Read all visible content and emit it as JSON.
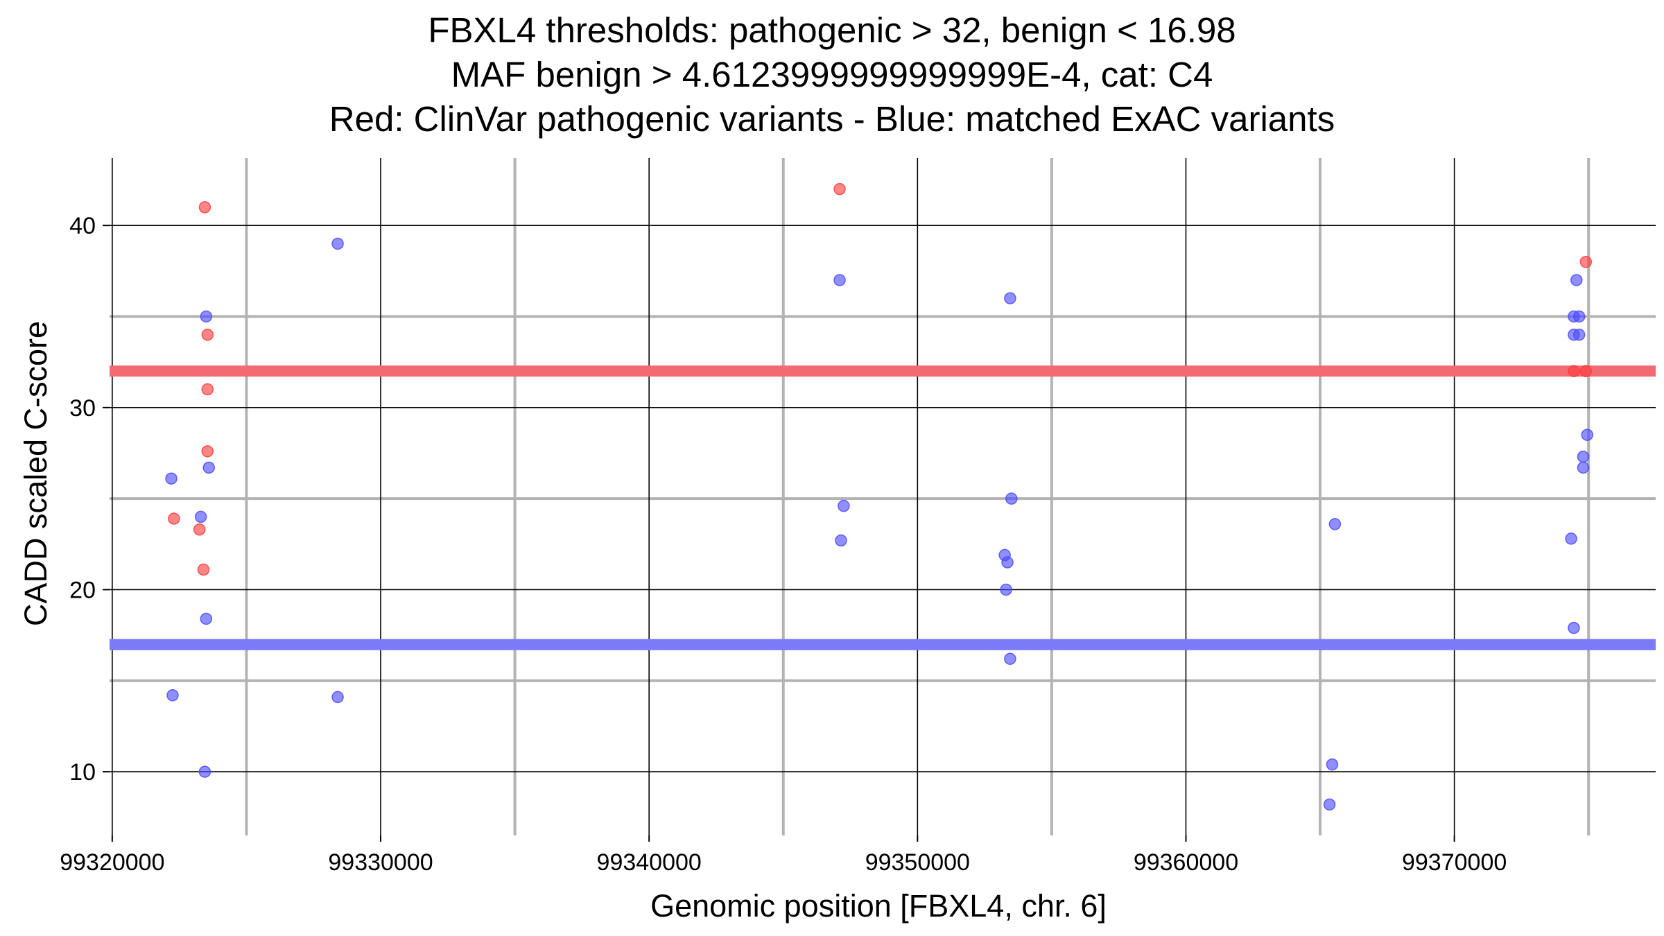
{
  "chart_data": {
    "type": "scatter",
    "title_lines": [
      "FBXL4 thresholds: pathogenic > 32, benign < 16.98",
      "MAF benign > 4.6123999999999999E-4, cat: C4",
      "Red: ClinVar pathogenic variants - Blue: matched ExAC variants"
    ],
    "xlabel": "Genomic position [FBXL4, chr. 6]",
    "ylabel": "CADD scaled C-score",
    "xlim": [
      99319900,
      99377500
    ],
    "ylim": [
      6.5,
      43.7
    ],
    "x_ticks": [
      99320000,
      99330000,
      99340000,
      99350000,
      99360000,
      99370000
    ],
    "x_tick_labels": [
      "99320000",
      "99330000",
      "99340000",
      "99350000",
      "99360000",
      "99370000"
    ],
    "x_minor_gridlines": [
      99325000,
      99335000,
      99345000,
      99355000,
      99365000,
      99375000
    ],
    "y_ticks": [
      10,
      20,
      30,
      40
    ],
    "y_tick_labels": [
      "10",
      "20",
      "30",
      "40"
    ],
    "y_minor_gridlines": [
      15,
      25,
      35
    ],
    "thresholds": [
      {
        "name": "pathogenic",
        "value": 32,
        "color": "#f26b73"
      },
      {
        "name": "benign",
        "value": 16.98,
        "color": "#7b7bf7"
      }
    ],
    "colors": {
      "pathogenic": "#ff3b3b",
      "benign": "#4a4aff",
      "major_grid": "#000000",
      "minor_grid": "#b3b3b3"
    },
    "series": [
      {
        "name": "ClinVar pathogenic",
        "color": "#ff3b3b",
        "points": [
          {
            "x": 99323450,
            "y": 41
          },
          {
            "x": 99323550,
            "y": 34
          },
          {
            "x": 99323550,
            "y": 31
          },
          {
            "x": 99323550,
            "y": 27.6
          },
          {
            "x": 99322300,
            "y": 23.9
          },
          {
            "x": 99323250,
            "y": 23.3
          },
          {
            "x": 99323400,
            "y": 21.1
          },
          {
            "x": 99347100,
            "y": 42
          },
          {
            "x": 99374900,
            "y": 38
          },
          {
            "x": 99374450,
            "y": 32
          },
          {
            "x": 99374900,
            "y": 32
          }
        ]
      },
      {
        "name": "ExAC matched",
        "color": "#4a4aff",
        "points": [
          {
            "x": 99328400,
            "y": 39
          },
          {
            "x": 99323500,
            "y": 35
          },
          {
            "x": 99323600,
            "y": 26.7
          },
          {
            "x": 99322200,
            "y": 26.1
          },
          {
            "x": 99323300,
            "y": 24
          },
          {
            "x": 99323500,
            "y": 18.4
          },
          {
            "x": 99322250,
            "y": 14.2
          },
          {
            "x": 99328400,
            "y": 14.1
          },
          {
            "x": 99323450,
            "y": 10
          },
          {
            "x": 99347100,
            "y": 37
          },
          {
            "x": 99347250,
            "y": 24.6
          },
          {
            "x": 99347150,
            "y": 22.7
          },
          {
            "x": 99353450,
            "y": 36
          },
          {
            "x": 99353500,
            "y": 25
          },
          {
            "x": 99353250,
            "y": 21.9
          },
          {
            "x": 99353350,
            "y": 21.5
          },
          {
            "x": 99353300,
            "y": 20
          },
          {
            "x": 99353450,
            "y": 16.2
          },
          {
            "x": 99365550,
            "y": 23.6
          },
          {
            "x": 99365450,
            "y": 10.4
          },
          {
            "x": 99365350,
            "y": 8.2
          },
          {
            "x": 99374550,
            "y": 37
          },
          {
            "x": 99374450,
            "y": 35
          },
          {
            "x": 99374650,
            "y": 35
          },
          {
            "x": 99374450,
            "y": 34
          },
          {
            "x": 99374650,
            "y": 34
          },
          {
            "x": 99374950,
            "y": 28.5
          },
          {
            "x": 99374800,
            "y": 27.3
          },
          {
            "x": 99374800,
            "y": 26.7
          },
          {
            "x": 99374350,
            "y": 22.8
          },
          {
            "x": 99374450,
            "y": 17.9
          }
        ]
      }
    ]
  }
}
